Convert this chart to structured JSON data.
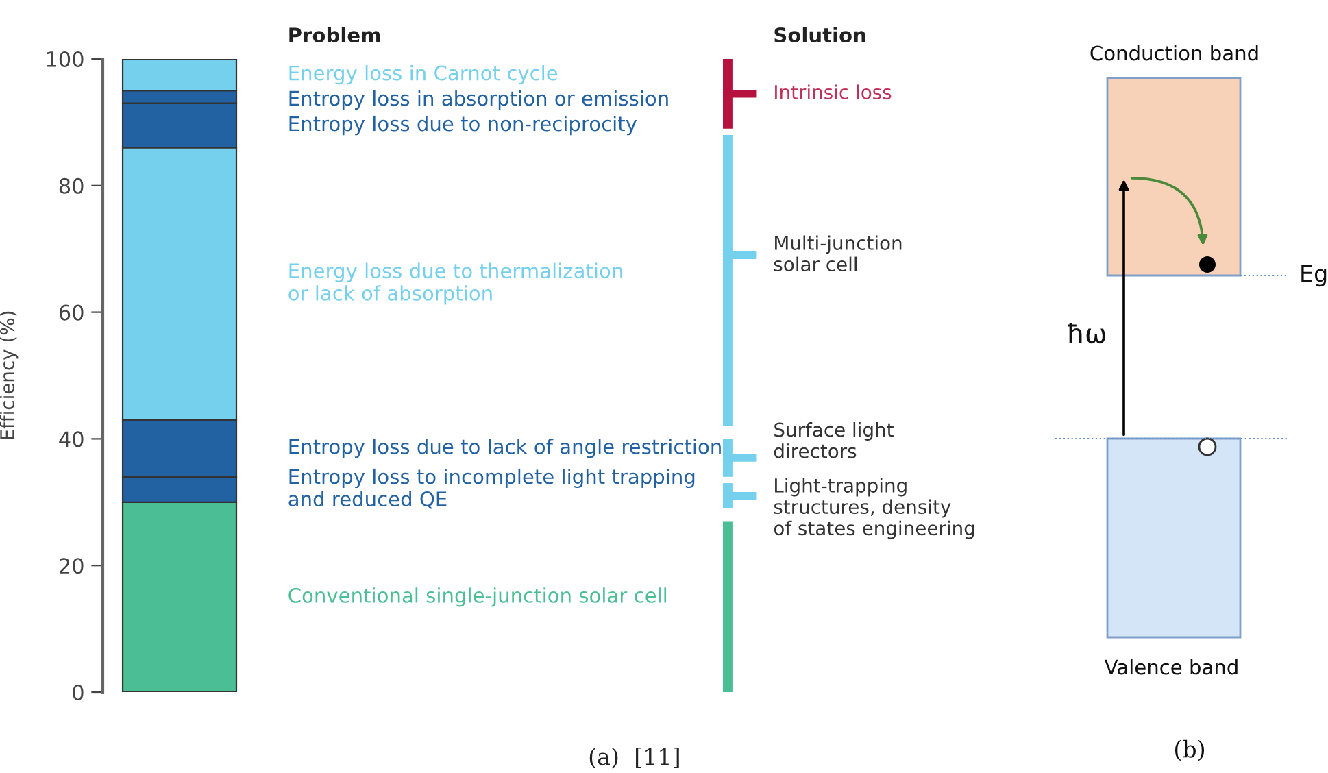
{
  "chart_data": [
    {
      "type": "bar",
      "stacked": true,
      "categories": [
        null
      ],
      "ylabel": "Efficiency (%)",
      "ylim": [
        0,
        100
      ],
      "yticks": [
        0,
        20,
        40,
        60,
        80,
        100
      ],
      "series": [
        {
          "name": "Conventional single-junction solar cell",
          "color": "#4cbe96",
          "values": [
            30
          ]
        },
        {
          "name": "Entropy loss to incomplete light trapping\nand reduced QE",
          "color": "#2362a2",
          "values": [
            4
          ]
        },
        {
          "name": "Entropy loss due to lack of angle restriction",
          "color": "#2362a2",
          "values": [
            9
          ]
        },
        {
          "name": "Energy loss due to thermalization\nor lack of absorption",
          "color": "#74d0ec",
          "values": [
            43
          ]
        },
        {
          "name": "Entropy loss due to non-reciprocity",
          "color": "#2362a2",
          "values": [
            7
          ]
        },
        {
          "name": "Entropy loss in absorption or emission",
          "color": "#2362a2",
          "values": [
            2
          ]
        },
        {
          "name": "Energy loss in Carnot cycle",
          "color": "#74d0ec",
          "values": [
            5
          ]
        }
      ],
      "annotations": [
        "Problem",
        "Solution",
        "(a)  [11]",
        "Intrinsic loss",
        "Multi-junction\nsolar cell",
        "Surface light\ndirectors",
        "Light-trapping\nstructures, density\nof states engineering"
      ]
    },
    {
      "type": "other",
      "annotations": [
        "Conduction band",
        "Valence band",
        "Eg",
        "ħω",
        "(b)"
      ]
    }
  ]
}
